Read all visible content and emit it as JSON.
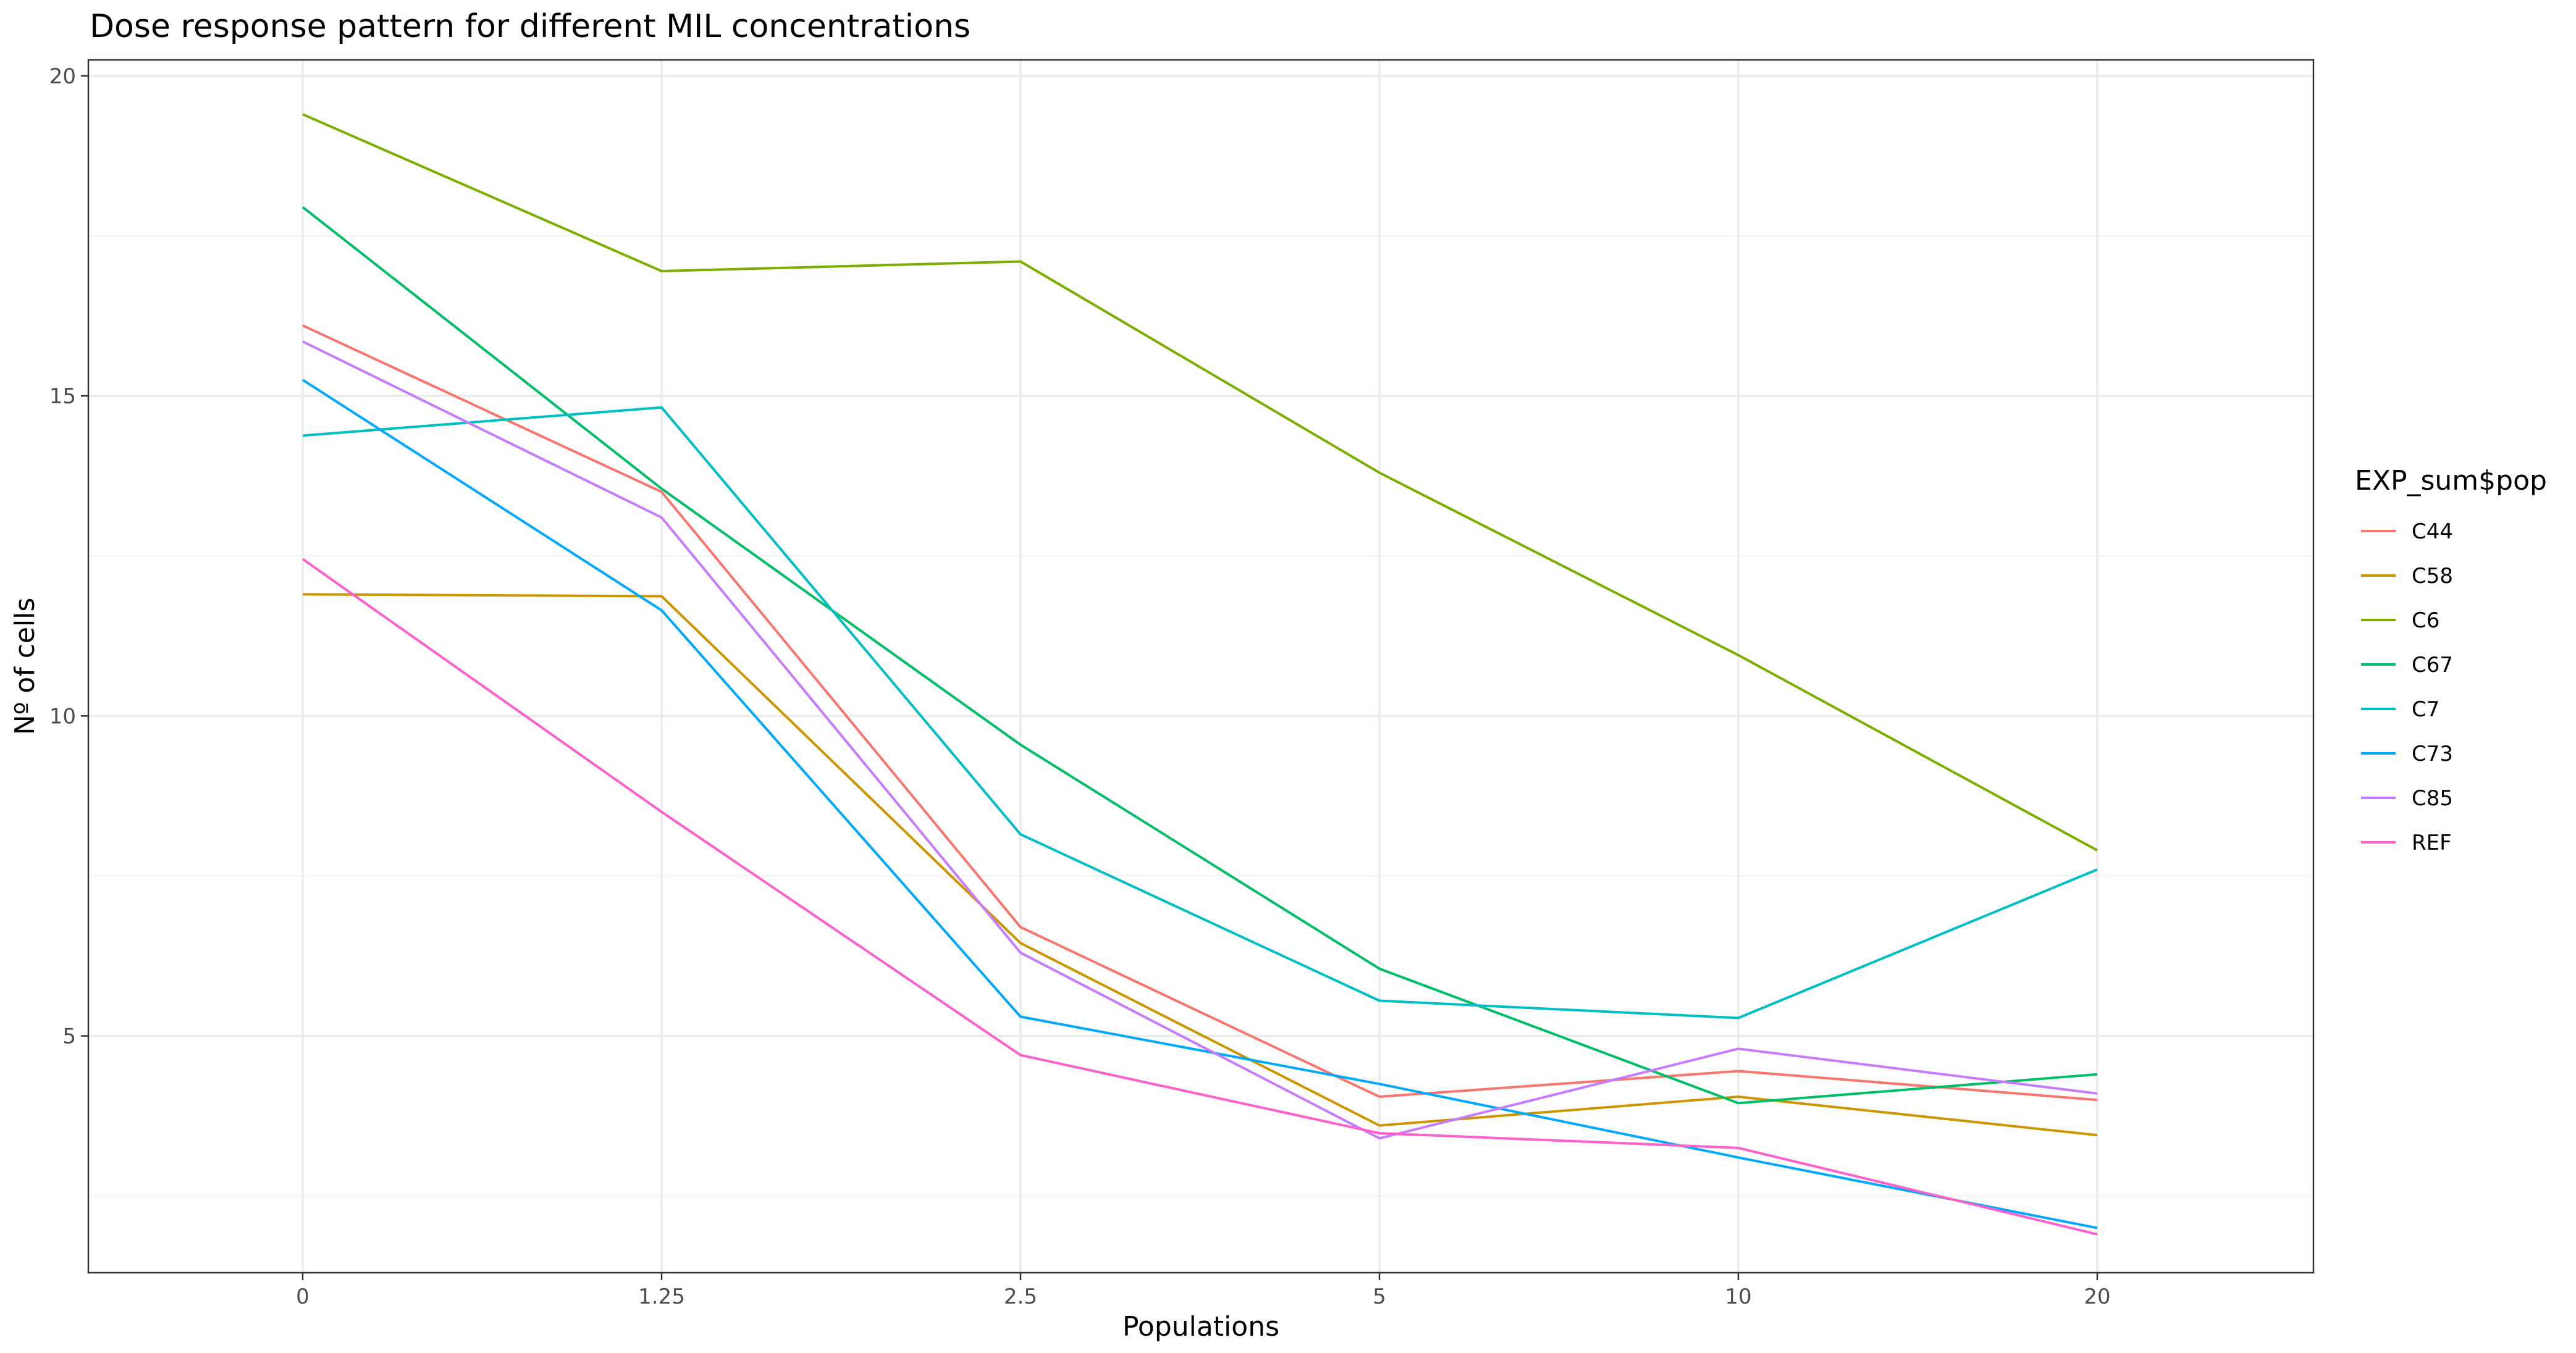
{
  "chart_data": {
    "type": "line",
    "title": "Dose response pattern for different MIL concentrations",
    "xlabel": "Populations",
    "ylabel": "Nº of cells",
    "categories": [
      "0",
      "1.25",
      "2.5",
      "5",
      "10",
      "20"
    ],
    "x_scale": "discrete",
    "ylim": [
      1.3,
      20.25
    ],
    "yticks": [
      5,
      10,
      15,
      20
    ],
    "grid": true,
    "legend": {
      "title": "EXP_sum$pop",
      "position": "right"
    },
    "series": [
      {
        "name": "C44",
        "color": "#F8766D",
        "values": [
          16.1,
          13.5,
          6.7,
          4.05,
          4.45,
          4.0
        ]
      },
      {
        "name": "C58",
        "color": "#CD9600",
        "values": [
          11.9,
          11.87,
          6.45,
          3.6,
          4.05,
          3.45
        ]
      },
      {
        "name": "C6",
        "color": "#7CAE00",
        "values": [
          19.4,
          16.95,
          17.1,
          13.8,
          10.95,
          7.9
        ]
      },
      {
        "name": "C67",
        "color": "#00BE67",
        "values": [
          17.95,
          13.55,
          9.55,
          6.05,
          3.95,
          4.4
        ]
      },
      {
        "name": "C7",
        "color": "#00BFC4",
        "values": [
          14.38,
          14.82,
          8.15,
          5.55,
          5.28,
          7.6
        ]
      },
      {
        "name": "C73",
        "color": "#00A9FF",
        "values": [
          15.25,
          11.65,
          5.3,
          4.25,
          3.1,
          2.0
        ]
      },
      {
        "name": "C85",
        "color": "#C77CFF",
        "values": [
          15.85,
          13.1,
          6.3,
          3.4,
          4.8,
          4.1
        ]
      },
      {
        "name": "REF",
        "color": "#FF61CC",
        "values": [
          12.45,
          8.5,
          4.7,
          3.48,
          3.25,
          1.9
        ]
      }
    ]
  }
}
